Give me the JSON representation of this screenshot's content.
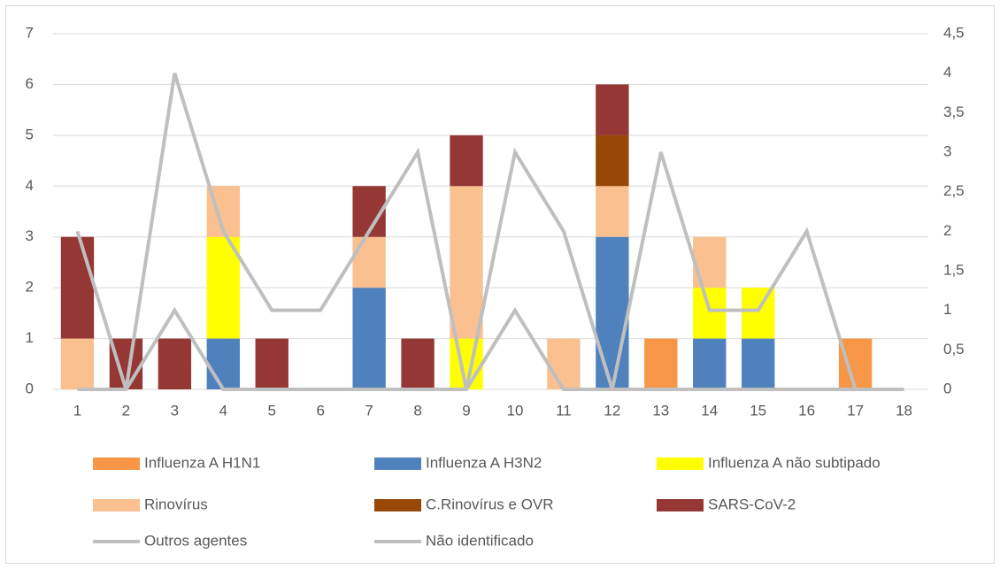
{
  "chart_data": {
    "type": "bar",
    "categories": [
      "1",
      "2",
      "3",
      "4",
      "5",
      "6",
      "7",
      "8",
      "9",
      "10",
      "11",
      "12",
      "13",
      "14",
      "15",
      "16",
      "17",
      "18"
    ],
    "series": [
      {
        "name": "Influenza A H1N1",
        "color": "#f79646",
        "values": [
          0,
          0,
          0,
          0,
          0,
          0,
          0,
          0,
          0,
          0,
          0,
          0,
          1,
          0,
          0,
          0,
          1,
          0
        ]
      },
      {
        "name": "Influenza A H3N2",
        "color": "#4f81bd",
        "values": [
          0,
          0,
          0,
          1,
          0,
          0,
          2,
          0,
          0,
          0,
          0,
          3,
          0,
          1,
          1,
          0,
          0,
          0
        ]
      },
      {
        "name": "Influenza A não subtipado",
        "color": "#ffff00",
        "values": [
          0,
          0,
          0,
          2,
          0,
          0,
          0,
          0,
          1,
          0,
          0,
          0,
          0,
          1,
          1,
          0,
          0,
          0
        ]
      },
      {
        "name": "Rinovírus",
        "color": "#fac090",
        "values": [
          1,
          0,
          0,
          1,
          0,
          0,
          1,
          0,
          3,
          0,
          1,
          1,
          0,
          1,
          0,
          0,
          0,
          0
        ]
      },
      {
        "name": "C.Rinovírus e OVR",
        "color": "#974706",
        "values": [
          0,
          0,
          0,
          0,
          0,
          0,
          0,
          0,
          0,
          0,
          0,
          1,
          0,
          0,
          0,
          0,
          0,
          0
        ]
      },
      {
        "name": "SARS-CoV-2",
        "color": "#953735",
        "values": [
          2,
          1,
          1,
          0,
          1,
          0,
          1,
          1,
          1,
          0,
          0,
          1,
          0,
          0,
          0,
          0,
          0,
          0
        ]
      },
      {
        "name": "Outros agentes",
        "type": "line",
        "axis": "y2",
        "color": "#bfbfbf",
        "values": [
          2,
          0,
          4,
          2,
          1,
          1,
          2,
          3,
          0,
          3,
          2,
          0,
          3,
          1,
          1,
          2,
          0,
          0
        ]
      },
      {
        "name": "Não identificado",
        "type": "line",
        "axis": "y2",
        "color": "#bfbfbf",
        "values": [
          0,
          0,
          1,
          0,
          0,
          0,
          0,
          0,
          0,
          1,
          0,
          0,
          0,
          0,
          0,
          0,
          0,
          0
        ]
      }
    ],
    "stacked": true,
    "ylim": [
      0,
      7
    ],
    "yticks": [
      0,
      1,
      2,
      3,
      4,
      5,
      6,
      7
    ],
    "y2lim": [
      0,
      4.5
    ],
    "y2ticks": [
      0,
      {
        "value": 0.5,
        "label": "0,5"
      },
      1,
      {
        "value": 1.5,
        "label": "1,5"
      },
      2,
      {
        "value": 2.5,
        "label": "2,5"
      },
      3,
      {
        "value": 3.5,
        "label": "3,5"
      },
      4,
      {
        "value": 4.5,
        "label": "4,5"
      }
    ],
    "grid": true,
    "legend": "bottom"
  }
}
